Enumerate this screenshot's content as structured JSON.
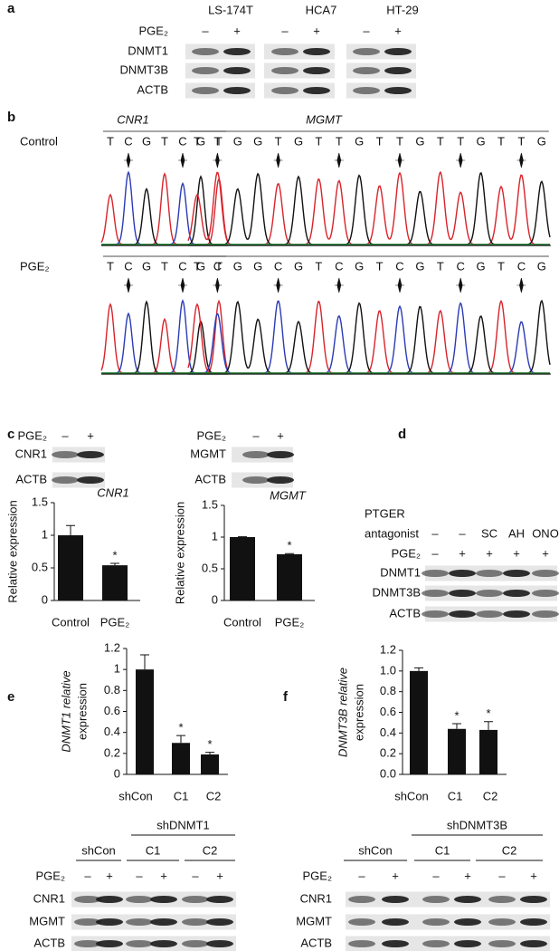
{
  "panel_labels": [
    "a",
    "b",
    "c",
    "d",
    "e",
    "f"
  ],
  "panel_a": {
    "cell_lines": [
      "LS-174T",
      "HCA7",
      "HT-29"
    ],
    "treatment_label": "PGE₂",
    "treatments": [
      "–",
      "+",
      "–",
      "+",
      "–",
      "+"
    ],
    "rows": [
      "DNMT1",
      "DNMT3B",
      "ACTB"
    ]
  },
  "panel_b": {
    "genes": [
      "CNR1",
      "MGMT"
    ],
    "conditions": [
      {
        "label": "Control",
        "CNR1": [
          "T",
          "C",
          "G",
          "T",
          "C",
          "G",
          "T"
        ],
        "MGMT": [
          "T",
          "T",
          "G",
          "G",
          "T",
          "G",
          "T",
          "T",
          "G",
          "T",
          "T",
          "G",
          "T",
          "T",
          "G",
          "T",
          "T",
          "G"
        ]
      },
      {
        "label": "PGE₂",
        "CNR1": [
          "T",
          "C",
          "G",
          "T",
          "C",
          "G",
          "T"
        ],
        "MGMT": [
          "T",
          "C",
          "G",
          "G",
          "C",
          "G",
          "T",
          "C",
          "G",
          "T",
          "C",
          "G",
          "T",
          "C",
          "G",
          "T",
          "C",
          "G"
        ]
      }
    ]
  },
  "panel_c": {
    "blots": [
      {
        "treatment_label": "PGE₂",
        "treatments": [
          "–",
          "+"
        ],
        "rows": [
          "CNR1",
          "ACTB"
        ]
      },
      {
        "treatment_label": "PGE₂",
        "treatments": [
          "–",
          "+"
        ],
        "rows": [
          "MGMT",
          "ACTB"
        ]
      }
    ]
  },
  "panel_d": {
    "antagonist_label": [
      "PTGER",
      "antagonist"
    ],
    "antagonists": [
      "–",
      "–",
      "SC",
      "AH",
      "ONO"
    ],
    "treatment_label": "PGE₂",
    "treatments": [
      "–",
      "+",
      "+",
      "+",
      "+"
    ],
    "rows": [
      "DNMT1",
      "DNMT3B",
      "ACTB"
    ]
  },
  "panel_e": {
    "group_label": "shDNMT1",
    "groups": [
      "shCon",
      "C1",
      "C2"
    ],
    "treatment_label": "PGE₂",
    "treatments": [
      "–",
      "+",
      "–",
      "+",
      "–",
      "+"
    ],
    "rows": [
      "CNR1",
      "MGMT",
      "ACTB"
    ]
  },
  "panel_f": {
    "group_label": "shDNMT3B",
    "groups": [
      "shCon",
      "C1",
      "C2"
    ],
    "treatment_label": "PGE₂",
    "treatments": [
      "–",
      "+",
      "–",
      "+",
      "–",
      "+"
    ],
    "rows": [
      "CNR1",
      "MGMT",
      "ACTB"
    ]
  },
  "chart_data": [
    {
      "type": "bar",
      "title": "CNR1",
      "ylabel": [
        "Relative expression"
      ],
      "categories": [
        "Control",
        "PGE₂"
      ],
      "values": [
        1.0,
        0.54
      ],
      "errors": [
        0.15,
        0.03
      ],
      "markers": [
        null,
        "*"
      ],
      "color": "#111111",
      "ylim": [
        0,
        1.5
      ],
      "yticks": [
        0,
        0.5,
        1,
        1.5
      ]
    },
    {
      "type": "bar",
      "title": "MGMT",
      "ylabel": [
        "Relative expression"
      ],
      "categories": [
        "Control",
        "PGE₂"
      ],
      "values": [
        1.0,
        0.73
      ],
      "errors": [
        0.005,
        0.01
      ],
      "markers": [
        null,
        "*"
      ],
      "color": "#111111",
      "ylim": [
        0,
        1.5
      ],
      "yticks": [
        0,
        0.5,
        1,
        1.5
      ]
    },
    {
      "type": "bar",
      "ylabel": [
        "DNMT1 relative",
        "expression"
      ],
      "categories": [
        "shCon",
        "C1",
        "C2"
      ],
      "values": [
        1.0,
        0.3,
        0.19
      ],
      "errors": [
        0.14,
        0.07,
        0.02
      ],
      "markers": [
        null,
        "*",
        "*"
      ],
      "color": "#111111",
      "ylim": [
        0,
        1.2
      ],
      "yticks": [
        0,
        0.2,
        0.4,
        0.6,
        0.8,
        1,
        1.2
      ]
    },
    {
      "type": "bar",
      "ylabel": [
        "DNMT3B relative",
        "expression"
      ],
      "categories": [
        "shCon",
        "C1",
        "C2"
      ],
      "values": [
        1.0,
        0.44,
        0.43
      ],
      "errors": [
        0.03,
        0.05,
        0.08
      ],
      "markers": [
        null,
        "*",
        "*"
      ],
      "color": "#111111",
      "ylim": [
        0,
        1.2
      ],
      "yticks": [
        {
          "value": 0,
          "label": "0.0"
        },
        0.2,
        0.4,
        0.6,
        0.8,
        {
          "value": 1,
          "label": "1.0"
        },
        1.2
      ]
    }
  ]
}
